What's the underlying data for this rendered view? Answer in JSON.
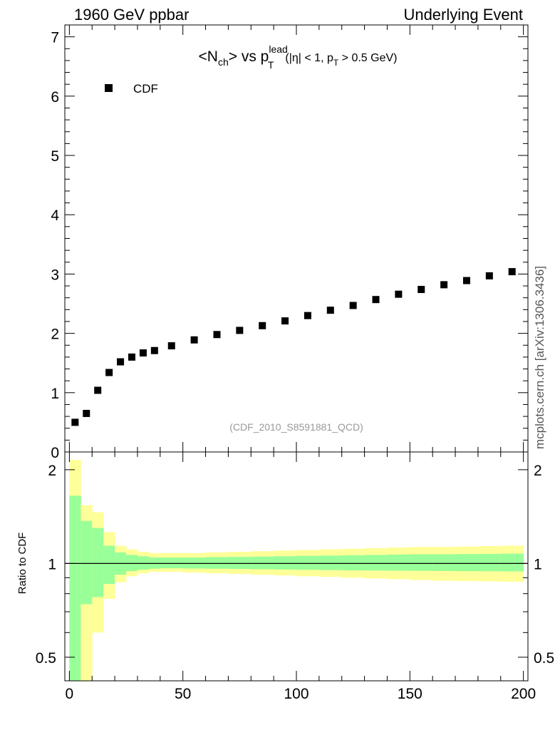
{
  "header": {
    "left": "1960 GeV ppbar",
    "right": "Underlying Event"
  },
  "side_label": "mcplots.cern.ch [arXiv:1306.3436]",
  "chart_data": [
    {
      "type": "scatter",
      "title_parts": {
        "lt": "<",
        "N": "N",
        "ch": "ch",
        "gt_vs_p": "> vs p",
        "lead": "lead",
        "T": "T",
        "eta_part": "(|η| < 1, p",
        "T2": "T",
        "tail": " > 0.5 GeV)"
      },
      "watermark": "(CDF_2010_S8591881_QCD)",
      "legend": {
        "placement": "top-left",
        "entries": [
          "CDF"
        ]
      },
      "xlim": [
        -2,
        202
      ],
      "ylim": [
        0,
        7.2
      ],
      "yticks": [
        "0",
        "1",
        "2",
        "3",
        "4",
        "5",
        "6",
        "7"
      ],
      "series": [
        {
          "name": "CDF",
          "color": "#000000",
          "marker": "square",
          "x": [
            2.5,
            7.5,
            12.5,
            17.5,
            22.5,
            27.5,
            32.5,
            37.5,
            45,
            55,
            65,
            75,
            85,
            95,
            105,
            115,
            125,
            135,
            145,
            155,
            165,
            175,
            185,
            195
          ],
          "y": [
            0.5,
            0.65,
            1.04,
            1.34,
            1.52,
            1.6,
            1.67,
            1.71,
            1.79,
            1.89,
            1.98,
            2.05,
            2.13,
            2.21,
            2.3,
            2.39,
            2.47,
            2.57,
            2.66,
            2.74,
            2.82,
            2.89,
            2.97,
            3.04
          ]
        }
      ]
    },
    {
      "type": "area",
      "ylabel": "Ratio to CDF",
      "ylim": [
        0.42,
        2.28
      ],
      "ytick_values": [
        0.5,
        1,
        2
      ],
      "yticks": [
        "0.5",
        "1",
        "2"
      ],
      "xlim": [
        -2,
        202
      ],
      "xticks": [
        "0",
        "50",
        "100",
        "150",
        "200"
      ],
      "reference_line": 1,
      "colors": {
        "inner": "#99ff99",
        "outer": "#ffff99"
      },
      "bins": [
        0,
        5,
        10,
        15,
        20,
        25,
        30,
        35,
        40,
        50,
        60,
        70,
        80,
        90,
        100,
        110,
        120,
        130,
        140,
        150,
        160,
        170,
        180,
        190,
        200
      ],
      "inner_up": [
        1.65,
        1.37,
        1.3,
        1.14,
        1.085,
        1.065,
        1.055,
        1.045,
        1.045,
        1.045,
        1.048,
        1.05,
        1.052,
        1.055,
        1.058,
        1.06,
        1.062,
        1.065,
        1.068,
        1.07,
        1.07,
        1.072,
        1.073,
        1.075
      ],
      "inner_down": [
        0.42,
        0.74,
        0.78,
        0.86,
        0.92,
        0.945,
        0.955,
        0.962,
        0.965,
        0.963,
        0.962,
        0.96,
        0.958,
        0.956,
        0.954,
        0.952,
        0.95,
        0.949,
        0.948,
        0.947,
        0.946,
        0.945,
        0.944,
        0.943
      ],
      "outer_up": [
        2.15,
        1.54,
        1.46,
        1.26,
        1.14,
        1.11,
        1.09,
        1.08,
        1.08,
        1.08,
        1.085,
        1.09,
        1.095,
        1.1,
        1.105,
        1.11,
        1.115,
        1.12,
        1.125,
        1.13,
        1.13,
        1.133,
        1.137,
        1.14
      ],
      "outer_down": [
        0.42,
        0.42,
        0.6,
        0.77,
        0.87,
        0.91,
        0.93,
        0.94,
        0.94,
        0.935,
        0.93,
        0.925,
        0.92,
        0.915,
        0.91,
        0.905,
        0.9,
        0.895,
        0.89,
        0.885,
        0.88,
        0.878,
        0.876,
        0.874
      ]
    }
  ]
}
